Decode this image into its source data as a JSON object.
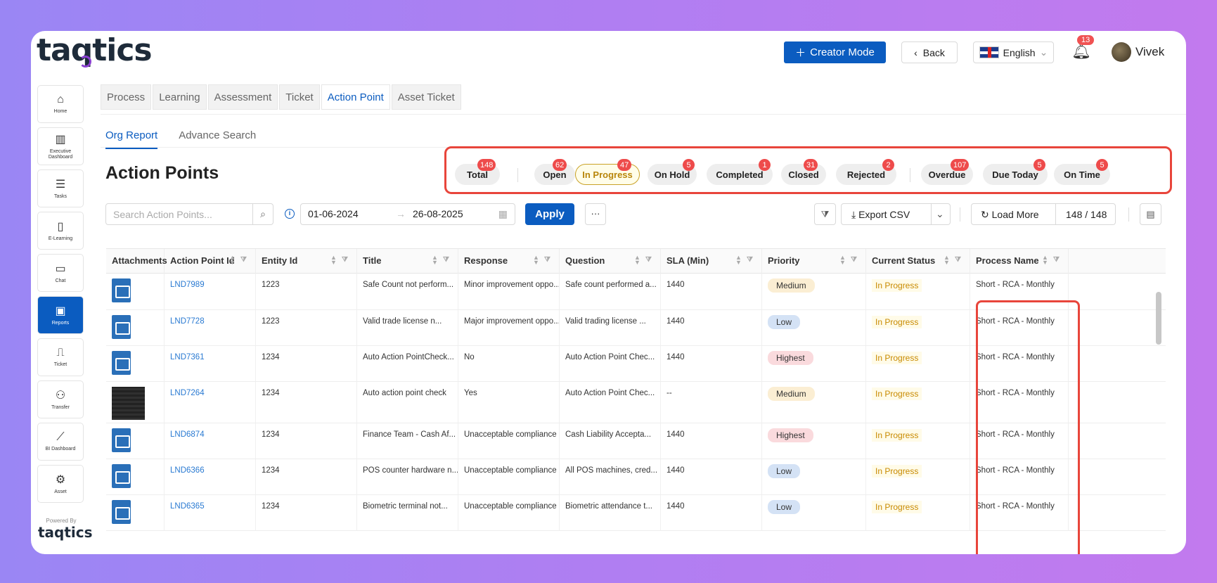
{
  "header": {
    "logo": "taqtics",
    "creator_mode": "Creator Mode",
    "back": "Back",
    "language": "English",
    "notifications": "13",
    "user": "Vivek"
  },
  "sidebar": {
    "items": [
      {
        "label": "Home",
        "icon": "⌂"
      },
      {
        "label": "Executive Dashboard",
        "icon": "▥"
      },
      {
        "label": "Tasks",
        "icon": "☰"
      },
      {
        "label": "E-Learning",
        "icon": "▯"
      },
      {
        "label": "Chat",
        "icon": "▭"
      },
      {
        "label": "Reports",
        "icon": "▣"
      },
      {
        "label": "Ticket",
        "icon": "⎍"
      },
      {
        "label": "Transfer",
        "icon": "⚇"
      },
      {
        "label": "BI Dashboard",
        "icon": "⟋"
      },
      {
        "label": "Asset",
        "icon": "⚙"
      }
    ],
    "powered_by": "Powered By",
    "powered_logo": "taqtics"
  },
  "tabs": [
    "Process",
    "Learning",
    "Assessment",
    "Ticket",
    "Action Point",
    "Asset Ticket"
  ],
  "subtabs": [
    "Org Report",
    "Advance Search"
  ],
  "page_title": "Action Points",
  "status_pills": [
    {
      "label": "Total",
      "count": "148"
    },
    {
      "label": "Open",
      "count": "62"
    },
    {
      "label": "In Progress",
      "count": "47"
    },
    {
      "label": "On Hold",
      "count": "5"
    },
    {
      "label": "Completed",
      "count": "1"
    },
    {
      "label": "Closed",
      "count": "31"
    },
    {
      "label": "Rejected",
      "count": "2"
    },
    {
      "label": "Overdue",
      "count": "107"
    },
    {
      "label": "Due Today",
      "count": "5"
    },
    {
      "label": "On Time",
      "count": "5"
    }
  ],
  "toolbar": {
    "search_placeholder": "Search Action Points...",
    "date_from": "01-06-2024",
    "date_to": "26-08-2025",
    "apply": "Apply",
    "more": "···",
    "export": "Export CSV",
    "load_more": "Load More",
    "count": "148 / 148"
  },
  "table": {
    "columns": [
      "Attachments",
      "Action Point Id",
      "Entity Id",
      "Title",
      "Response",
      "Question",
      "SLA (Min)",
      "Priority",
      "Current Status",
      "Process Name"
    ],
    "rows": [
      {
        "attachment": "image-icon",
        "id": "LND7989",
        "entity": "1223",
        "title": "Safe Count not perform...",
        "response": "Minor improvement oppo...",
        "question": "Safe count performed a...",
        "sla": "1440",
        "priority": "Medium",
        "status": "In Progress",
        "process": "Short - RCA - Monthly"
      },
      {
        "attachment": "image-icon",
        "id": "LND7728",
        "entity": "1223",
        "title": "Valid trade license n...",
        "response": "Major improvement oppo...",
        "question": "Valid trading license ...",
        "sla": "1440",
        "priority": "Low",
        "status": "In Progress",
        "process": "Short - RCA - Monthly"
      },
      {
        "attachment": "image-icon",
        "id": "LND7361",
        "entity": "1234",
        "title": "Auto Action PointCheck...",
        "response": "No",
        "question": "Auto Action Point Chec...",
        "sla": "1440",
        "priority": "Highest",
        "status": "In Progress",
        "process": "Short - RCA - Monthly"
      },
      {
        "attachment": "photo",
        "id": "LND7264",
        "entity": "1234",
        "title": "Auto action point check",
        "response": "Yes",
        "question": "Auto Action Point Chec...",
        "sla": "--",
        "priority": "Medium",
        "status": "In Progress",
        "process": "Short - RCA - Monthly"
      },
      {
        "attachment": "image-icon",
        "id": "LND6874",
        "entity": "1234",
        "title": "Finance Team - Cash Af...",
        "response": "Unacceptable compliance",
        "question": "Cash Liability Accepta...",
        "sla": "1440",
        "priority": "Highest",
        "status": "In Progress",
        "process": "Short - RCA - Monthly"
      },
      {
        "attachment": "image-icon",
        "id": "LND6366",
        "entity": "1234",
        "title": "POS counter hardware n...",
        "response": "Unacceptable compliance",
        "question": "All POS machines, cred...",
        "sla": "1440",
        "priority": "Low",
        "status": "In Progress",
        "process": "Short - RCA - Monthly"
      },
      {
        "attachment": "image-icon",
        "id": "LND6365",
        "entity": "1234",
        "title": "Biometric terminal not...",
        "response": "Unacceptable compliance",
        "question": "Biometric attendance t...",
        "sla": "1440",
        "priority": "Low",
        "status": "In Progress",
        "process": "Short - RCA - Monthly"
      }
    ]
  },
  "colors": {
    "accent": "#0b5cc0",
    "highlight": "#e8453b",
    "badge": "#ee4b4b"
  }
}
